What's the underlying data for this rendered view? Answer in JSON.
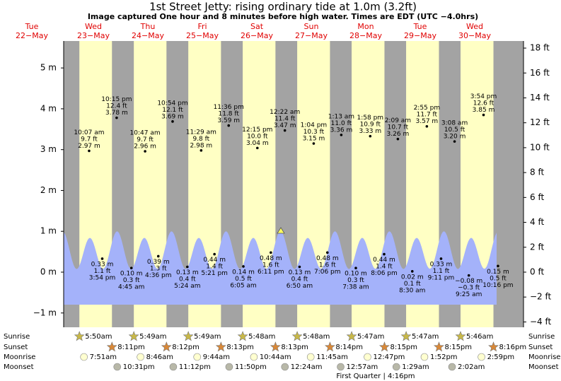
{
  "title": "1st Street Jetty: rising  ordinary tide at 1.0m (3.2ft)",
  "subtitle": "Image captured One hour and 8 minutes before high water. Times are EDT (UTC −4.0hrs)",
  "astro_labels": [
    "Sunrise",
    "Sunset",
    "Moonrise",
    "Moonset"
  ],
  "moon_phase": "First Quarter | 4:16pm",
  "chart_data": {
    "type": "tide",
    "ylim": [
      -1.35,
      5.66
    ],
    "yticks": [
      {
        "value": -1,
        "label": "−1 m"
      },
      {
        "value": 0,
        "label": "0 m"
      },
      {
        "value": 1,
        "label": "1 m"
      },
      {
        "value": 2,
        "label": "2 m"
      },
      {
        "value": 3,
        "label": "3 m"
      },
      {
        "value": 4,
        "label": "4 m"
      },
      {
        "value": 5,
        "label": "5 m"
      }
    ],
    "y2lim": [
      -4.43,
      18.57
    ],
    "y2ticks": [
      {
        "value": -4,
        "label": "−4 ft"
      },
      {
        "value": -2,
        "label": "−2 ft"
      },
      {
        "value": 0,
        "label": "0 ft"
      },
      {
        "value": 2,
        "label": "2 ft"
      },
      {
        "value": 4,
        "label": "4 ft"
      },
      {
        "value": 6,
        "label": "6 ft"
      },
      {
        "value": 8,
        "label": "8 ft"
      },
      {
        "value": 10,
        "label": "10 ft"
      },
      {
        "value": 12,
        "label": "12 ft"
      },
      {
        "value": 14,
        "label": "14 ft"
      },
      {
        "value": 16,
        "label": "16 ft"
      },
      {
        "value": 18,
        "label": "18 ft"
      }
    ],
    "days": [
      {
        "weekday": "Tue",
        "date": "22−May",
        "tides": []
      },
      {
        "weekday": "Wed",
        "date": "23−May",
        "sunrise": "5:50am",
        "sunset": "8:11pm",
        "moonrise": "7:51am",
        "moonset": "10:31pm",
        "tides": [
          {
            "time": "10:07 am",
            "height": 2.97,
            "label_ft": "9.7 ft",
            "label_m": "2.97 m"
          },
          {
            "time": "3:54 pm",
            "height": 0.33,
            "label_ft": "1.1 ft",
            "label_m": "0.33 m"
          },
          {
            "time": "10:15 pm",
            "height": 3.78,
            "label_ft": "12.4 ft",
            "label_m": "3.78 m"
          }
        ]
      },
      {
        "weekday": "Thu",
        "date": "24−May",
        "sunrise": "5:49am",
        "sunset": "8:12pm",
        "moonrise": "8:46am",
        "moonset": "11:12pm",
        "tides": [
          {
            "time": "4:45 am",
            "height": 0.1,
            "label_ft": "0.3 ft",
            "label_m": "0.10 m"
          },
          {
            "time": "10:47 am",
            "height": 2.96,
            "label_ft": "9.7 ft",
            "label_m": "2.96 m"
          },
          {
            "time": "4:36 pm",
            "height": 0.39,
            "label_ft": "1.3 ft",
            "label_m": "0.39 m"
          },
          {
            "time": "10:54 pm",
            "height": 3.69,
            "label_ft": "12.1 ft",
            "label_m": "3.69 m"
          }
        ]
      },
      {
        "weekday": "Fri",
        "date": "25−May",
        "sunrise": "5:49am",
        "sunset": "8:13pm",
        "moonrise": "9:44am",
        "moonset": "11:50pm",
        "tides": [
          {
            "time": "5:24 am",
            "height": 0.13,
            "label_ft": "0.4 ft",
            "label_m": "0.13 m"
          },
          {
            "time": "11:29 am",
            "height": 2.98,
            "label_ft": "9.8 ft",
            "label_m": "2.98 m"
          },
          {
            "time": "5:21 pm",
            "height": 0.44,
            "label_ft": "1.4 ft",
            "label_m": "0.44 m"
          },
          {
            "time": "11:36 pm",
            "height": 3.59,
            "label_ft": "11.8 ft",
            "label_m": "3.59 m"
          }
        ]
      },
      {
        "weekday": "Sat",
        "date": "26−May",
        "sunrise": "5:48am",
        "sunset": "8:13pm",
        "moonrise": "10:44am",
        "tides": [
          {
            "time": "6:05 am",
            "height": 0.14,
            "label_ft": "0.5 ft",
            "label_m": "0.14 m"
          },
          {
            "time": "12:15 pm",
            "height": 3.04,
            "label_ft": "10.0 ft",
            "label_m": "3.04 m"
          },
          {
            "time": "6:11 pm",
            "height": 0.48,
            "label_ft": "1.6 ft",
            "label_m": "0.48 m"
          }
        ]
      },
      {
        "weekday": "Sun",
        "date": "27−May",
        "sunrise": "5:48am",
        "sunset": "8:14pm",
        "moonrise": "11:45am",
        "moonset": "12:24am",
        "tides": [
          {
            "time": "12:22 am",
            "height": 3.47,
            "label_ft": "11.4 ft",
            "label_m": "3.47 m"
          },
          {
            "time": "6:50 am",
            "height": 0.13,
            "label_ft": "0.4 ft",
            "label_m": "0.13 m"
          },
          {
            "time": "1:04 pm",
            "height": 3.15,
            "label_ft": "10.3 ft",
            "label_m": "3.15 m"
          },
          {
            "time": "7:06 pm",
            "height": 0.48,
            "label_ft": "1.6 ft",
            "label_m": "0.48 m"
          }
        ]
      },
      {
        "weekday": "Mon",
        "date": "28−May",
        "sunrise": "5:47am",
        "sunset": "8:15pm",
        "moonrise": "12:47pm",
        "moonset": "12:57am",
        "tides": [
          {
            "time": "1:13 am",
            "height": 3.36,
            "label_ft": "11.0 ft",
            "label_m": "3.36 m"
          },
          {
            "time": "7:38 am",
            "height": 0.1,
            "label_ft": "0.3 ft",
            "label_m": "0.10 m"
          },
          {
            "time": "1:58 pm",
            "height": 3.33,
            "label_ft": "10.9 ft",
            "label_m": "3.33 m"
          },
          {
            "time": "8:06 pm",
            "height": 0.44,
            "label_ft": "1.4 ft",
            "label_m": "0.44 m"
          }
        ]
      },
      {
        "weekday": "Tue",
        "date": "29−May",
        "sunrise": "5:47am",
        "sunset": "8:15pm",
        "moonrise": "1:52pm",
        "moonset": "1:29am",
        "tides": [
          {
            "time": "2:09 am",
            "height": 3.26,
            "label_ft": "10.7 ft",
            "label_m": "3.26 m"
          },
          {
            "time": "8:30 am",
            "height": 0.02,
            "label_ft": "0.1 ft",
            "label_m": "0.02 m"
          },
          {
            "time": "2:55 pm",
            "height": 3.57,
            "label_ft": "11.7 ft",
            "label_m": "3.57 m"
          },
          {
            "time": "9:11 pm",
            "height": 0.33,
            "label_ft": "1.1 ft",
            "label_m": "0.33 m"
          }
        ]
      },
      {
        "weekday": "Wed",
        "date": "30−May",
        "sunrise": "5:46am",
        "sunset": "8:16pm",
        "moonrise": "2:59pm",
        "moonset": "2:02am",
        "tides": [
          {
            "time": "3:08 am",
            "height": 3.2,
            "label_ft": "10.5 ft",
            "label_m": "3.20 m"
          },
          {
            "time": "9:25 am",
            "height": -0.08,
            "label_ft": "−0.3 ft",
            "label_m": "−0.08 m"
          },
          {
            "time": "3:54 pm",
            "height": 3.85,
            "label_ft": "12.6 ft",
            "label_m": "3.85 m"
          },
          {
            "time": "10:16 pm",
            "height": 0.15,
            "label_ft": "0.5 ft",
            "label_m": "0.15 m"
          }
        ]
      }
    ]
  }
}
